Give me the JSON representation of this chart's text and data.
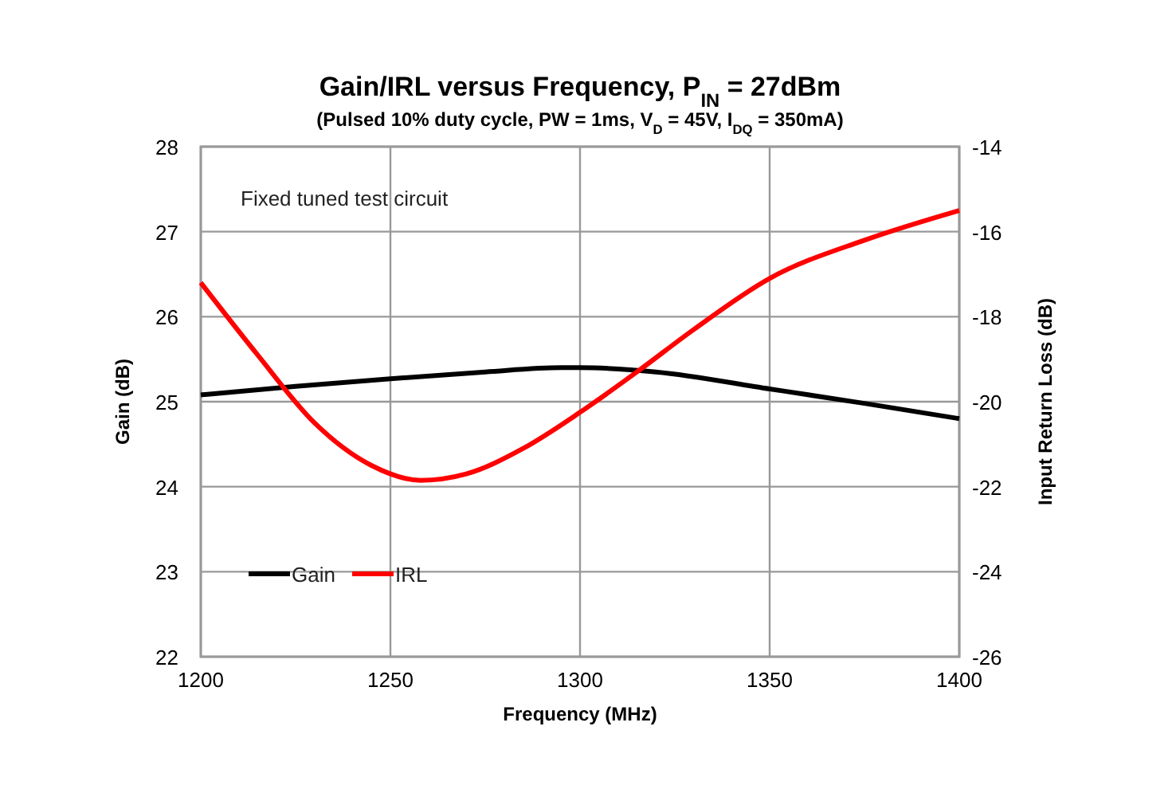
{
  "chart_data": {
    "type": "line",
    "title": "Gain/IRL versus Frequency, P$_{IN}$ = 27dBm",
    "subtitle": "(Pulsed 10% duty cycle, PW = 1ms, V$_{D}$ = 45V, I$_{DQ}$ = 350mA)",
    "xlabel": "Frequency (MHz)",
    "ylabel": "Gain (dB)",
    "y2label": "Input Return Loss (dB)",
    "annotations": [
      "Fixed tuned test circuit"
    ],
    "x": [
      1200,
      1225,
      1250,
      1275,
      1295,
      1300,
      1320,
      1350,
      1375,
      1400
    ],
    "xlim": [
      1200,
      1400
    ],
    "xticks": [
      1200,
      1250,
      1300,
      1350,
      1400
    ],
    "ylim": [
      22,
      28
    ],
    "yticks": [
      22,
      23,
      24,
      25,
      26,
      27,
      28
    ],
    "y2lim": [
      -26,
      -14
    ],
    "y2ticks": [
      -26,
      -24,
      -22,
      -20,
      -18,
      -16,
      -14
    ],
    "series": [
      {
        "name": "Gain",
        "color": "#000000",
        "values": [
          25.08,
          25.18,
          25.27,
          25.35,
          25.4,
          25.4,
          25.35,
          25.15,
          24.98,
          24.8
        ]
      },
      {
        "name": "IRL",
        "color": "#ff0000",
        "axis": "y2",
        "x": [
          1200,
          1215,
          1230,
          1245,
          1258,
          1270,
          1285,
          1300,
          1315,
          1330,
          1350,
          1375,
          1400
        ],
        "values": [
          -17.2,
          -18.9,
          -20.5,
          -21.5,
          -21.85,
          -21.7,
          -21.1,
          -20.25,
          -19.3,
          -18.3,
          -17.1,
          -16.2,
          -15.5
        ]
      }
    ],
    "grid": true,
    "legend": "bottom left",
    "line_style": "solid",
    "marker": "none"
  }
}
